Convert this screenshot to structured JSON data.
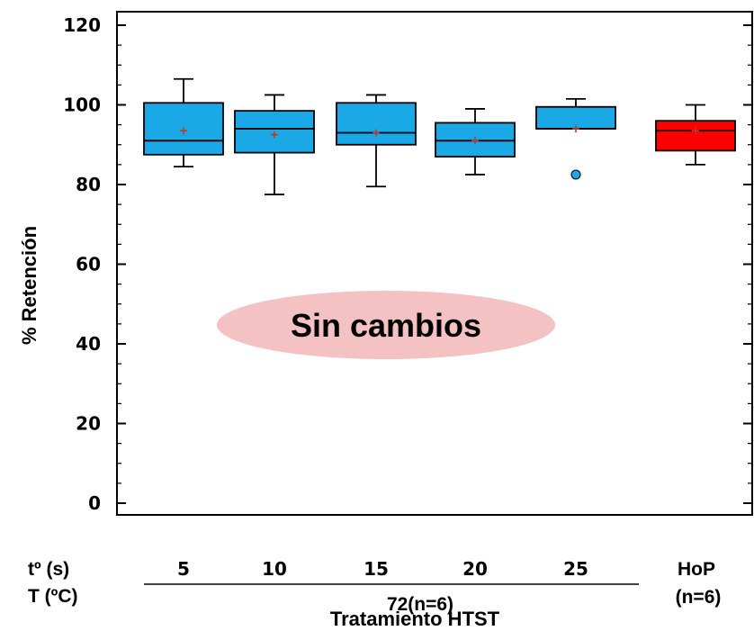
{
  "chart_data": {
    "type": "boxplot",
    "ylabel": "% Retención",
    "xlabel": "Tratamiento HTST",
    "ylim": [
      0,
      120
    ],
    "yticks": [
      0,
      20,
      40,
      60,
      80,
      100,
      120
    ],
    "row_labels": {
      "time": "tº (s)",
      "temp": "T (ºC)"
    },
    "group_label_htst": "72(n=6)",
    "hop_label_line1": "HoP",
    "hop_label_line2": "(n=6)",
    "categories": [
      "5",
      "10",
      "15",
      "20",
      "25",
      "HoP"
    ],
    "boxes": [
      {
        "category": "5",
        "whisker_low": 84.5,
        "q1": 87.5,
        "median": 91,
        "q3": 100.5,
        "whisker_high": 106.5,
        "mean": 93.5,
        "outliers": [],
        "color": "#1aa8e6"
      },
      {
        "category": "10",
        "whisker_low": 77.5,
        "q1": 88,
        "median": 94,
        "q3": 98.5,
        "whisker_high": 102.5,
        "mean": 92.5,
        "outliers": [],
        "color": "#1aa8e6"
      },
      {
        "category": "15",
        "whisker_low": 79.5,
        "q1": 90,
        "median": 93,
        "q3": 100.5,
        "whisker_high": 102.5,
        "mean": 93,
        "outliers": [],
        "color": "#1aa8e6"
      },
      {
        "category": "20",
        "whisker_low": 82.5,
        "q1": 87,
        "median": 91,
        "q3": 95.5,
        "whisker_high": 99,
        "mean": 91,
        "outliers": [],
        "color": "#1aa8e6"
      },
      {
        "category": "25",
        "whisker_low": 94,
        "q1": 94,
        "median": 94,
        "q3": 99.5,
        "whisker_high": 101.5,
        "mean": 94,
        "outliers": [
          82.5
        ],
        "color": "#1aa8e6"
      },
      {
        "category": "HoP",
        "whisker_low": 85,
        "q1": 88.5,
        "median": 93.5,
        "q3": 96,
        "whisker_high": 100,
        "mean": 93.5,
        "outliers": [],
        "color": "#ff0000"
      }
    ],
    "annotation": {
      "text": "Sin cambios",
      "color": "#f4c2c2"
    },
    "mean_marker_color": "#c0392b"
  }
}
